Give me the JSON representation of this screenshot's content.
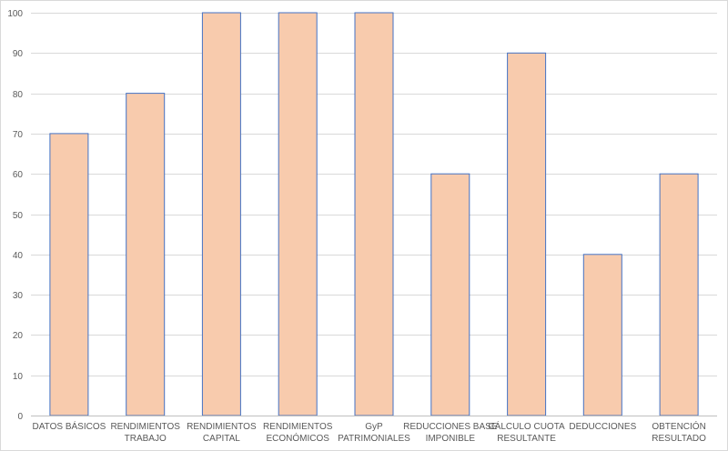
{
  "chart_data": {
    "type": "bar",
    "title": "",
    "xlabel": "",
    "ylabel": "",
    "categories": [
      [
        "DATOS BÁSICOS"
      ],
      [
        "RENDIMIENTOS",
        "TRABAJO"
      ],
      [
        "RENDIMIENTOS",
        "CAPITAL"
      ],
      [
        "RENDIMIENTOS",
        "ECONÓMICOS"
      ],
      [
        "GyP",
        "PATRIMONIALES"
      ],
      [
        "REDUCCIONES BASE",
        "IMPONIBLE"
      ],
      [
        "CÁLCULO CUOTA",
        "RESULTANTE"
      ],
      [
        "DEDUCCIONES"
      ],
      [
        "OBTENCIÓN",
        "RESULTADO"
      ]
    ],
    "values": [
      70,
      80,
      100,
      100,
      100,
      60,
      90,
      40,
      60
    ],
    "ylim": [
      0,
      100
    ],
    "yticks": [
      0,
      10,
      20,
      30,
      40,
      50,
      60,
      70,
      80,
      90,
      100
    ],
    "grid": true,
    "legend": "none",
    "colors": {
      "bar_fill": "#f8cbad",
      "bar_stroke": "#4472c4",
      "grid": "#d9d9d9",
      "axis": "#bfbfbf",
      "text": "#595959"
    }
  }
}
